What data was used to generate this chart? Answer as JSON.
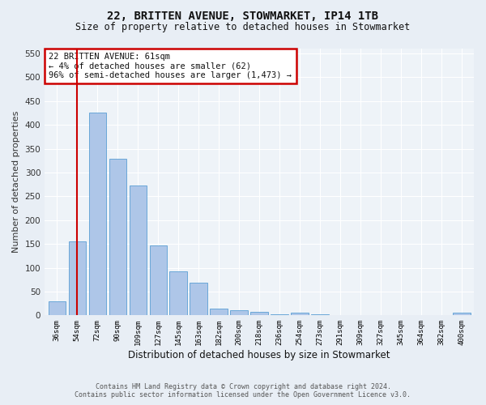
{
  "title1": "22, BRITTEN AVENUE, STOWMARKET, IP14 1TB",
  "title2": "Size of property relative to detached houses in Stowmarket",
  "xlabel": "Distribution of detached houses by size in Stowmarket",
  "ylabel": "Number of detached properties",
  "categories": [
    "36sqm",
    "54sqm",
    "72sqm",
    "90sqm",
    "109sqm",
    "127sqm",
    "145sqm",
    "163sqm",
    "182sqm",
    "200sqm",
    "218sqm",
    "236sqm",
    "254sqm",
    "273sqm",
    "291sqm",
    "309sqm",
    "327sqm",
    "345sqm",
    "364sqm",
    "382sqm",
    "400sqm"
  ],
  "values": [
    30,
    155,
    425,
    328,
    272,
    147,
    93,
    68,
    15,
    11,
    7,
    2,
    5,
    2,
    1,
    1,
    1,
    1,
    1,
    0,
    5
  ],
  "bar_color": "#aec6e8",
  "bar_edge_color": "#5a9fd4",
  "vline_x_index": 1,
  "vline_color": "#cc0000",
  "annotation_text": "22 BRITTEN AVENUE: 61sqm\n← 4% of detached houses are smaller (62)\n96% of semi-detached houses are larger (1,473) →",
  "annotation_box_color": "#cc0000",
  "ylim": [
    0,
    560
  ],
  "yticks": [
    0,
    50,
    100,
    150,
    200,
    250,
    300,
    350,
    400,
    450,
    500,
    550
  ],
  "footer1": "Contains HM Land Registry data © Crown copyright and database right 2024.",
  "footer2": "Contains public sector information licensed under the Open Government Licence v3.0.",
  "bg_color": "#e8eef5",
  "plot_bg_color": "#eef3f8",
  "grid_color": "#ffffff"
}
